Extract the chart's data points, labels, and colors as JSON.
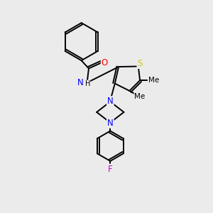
{
  "background_color": "#ebebeb",
  "bond_color": "#000000",
  "atom_colors": {
    "N": "#0000ff",
    "O": "#ff0000",
    "S": "#cccc00",
    "F": "#cc00cc",
    "C": "#000000",
    "H": "#000000"
  },
  "lw": 1.4
}
